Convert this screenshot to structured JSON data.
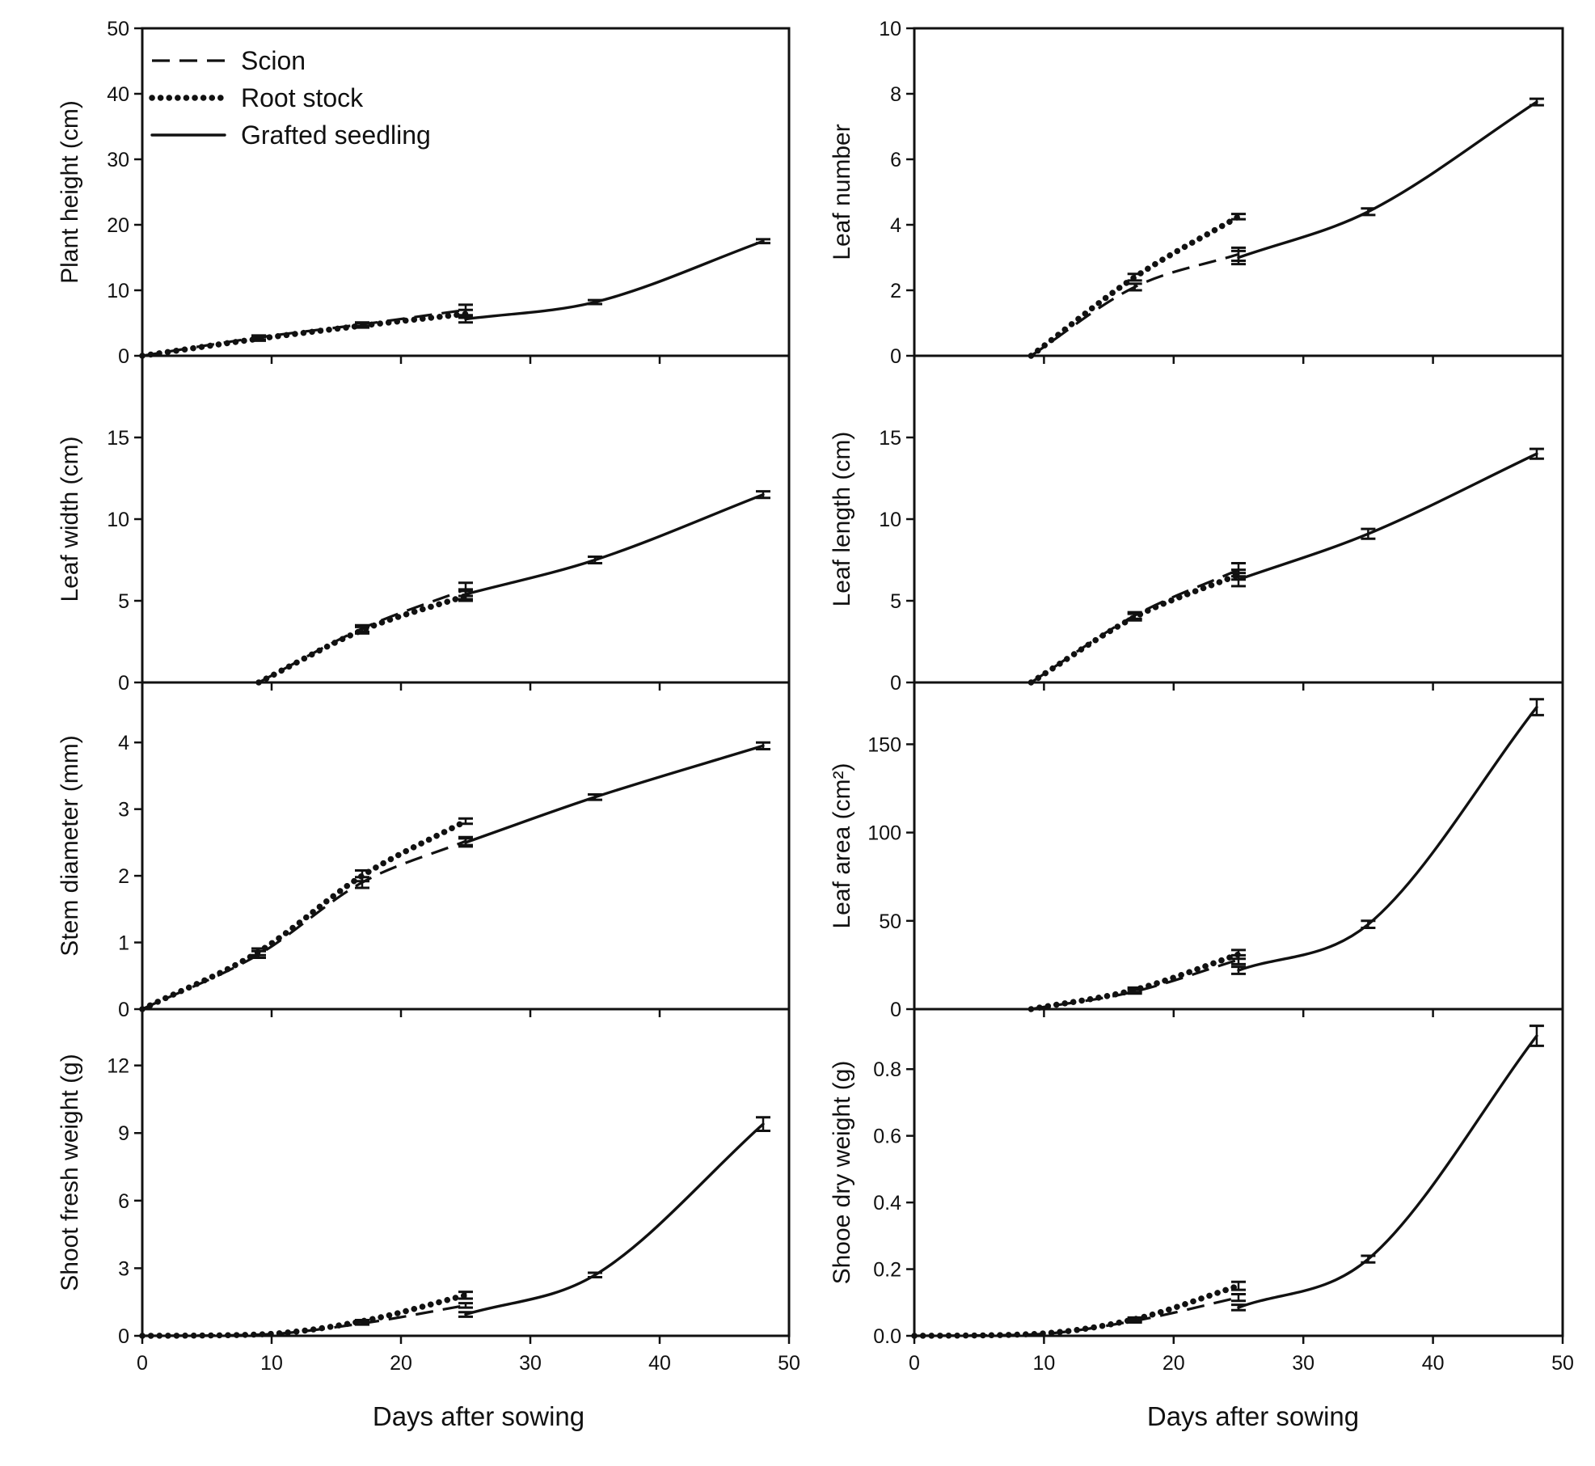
{
  "figure": {
    "xlabel": "Days after sowing",
    "legend": [
      {
        "series": "Scion",
        "style": "dashed"
      },
      {
        "series": "Root stock",
        "style": "dotted"
      },
      {
        "series": "Grafted seedling",
        "style": "solid"
      }
    ]
  },
  "chart_data": [
    {
      "type": "line",
      "panel": "top-left",
      "ylabel": "Plant height (cm)",
      "xlim": [
        0,
        50
      ],
      "ylim": [
        0,
        50
      ],
      "xticks": [
        0,
        10,
        20,
        30,
        40,
        50
      ],
      "yticks": [
        0,
        10,
        20,
        30,
        40,
        50
      ],
      "ytick_labels": [
        "0",
        "10",
        "20",
        "30",
        "40",
        "50"
      ],
      "legend_position": "top-left",
      "series": [
        {
          "name": "Scion",
          "style": "dashed",
          "x": [
            0,
            9,
            17,
            25
          ],
          "y": [
            0,
            2.8,
            4.8,
            7.0
          ],
          "err": [
            0,
            0.3,
            0.3,
            0.8
          ]
        },
        {
          "name": "Root stock",
          "style": "dotted",
          "x": [
            0,
            9,
            17,
            25
          ],
          "y": [
            0,
            2.6,
            4.6,
            6.4
          ],
          "err": [
            0,
            0.3,
            0.3,
            0.6
          ]
        },
        {
          "name": "Grafted seedling",
          "style": "solid",
          "x": [
            25,
            35,
            48
          ],
          "y": [
            5.6,
            8.2,
            17.5
          ],
          "err": [
            0.5,
            0.3,
            0.3
          ]
        }
      ]
    },
    {
      "type": "line",
      "panel": "top-right",
      "ylabel": "Leaf number",
      "xlim": [
        0,
        50
      ],
      "ylim": [
        0,
        10
      ],
      "xticks": [
        0,
        10,
        20,
        30,
        40,
        50
      ],
      "yticks": [
        0,
        2,
        4,
        6,
        8,
        10
      ],
      "ytick_labels": [
        "0",
        "2",
        "4",
        "6",
        "8",
        "10"
      ],
      "series": [
        {
          "name": "Scion",
          "style": "dashed",
          "x": [
            9,
            17,
            25
          ],
          "y": [
            0,
            2.1,
            3.1
          ],
          "err": [
            0,
            0.1,
            0.2
          ]
        },
        {
          "name": "Root stock",
          "style": "dotted",
          "x": [
            9,
            17,
            25
          ],
          "y": [
            0,
            2.4,
            4.25
          ],
          "err": [
            0,
            0.1,
            0.08
          ]
        },
        {
          "name": "Grafted seedling",
          "style": "solid",
          "x": [
            25,
            35,
            48
          ],
          "y": [
            3.0,
            4.4,
            7.75
          ],
          "err": [
            0.2,
            0.1,
            0.1
          ]
        }
      ]
    },
    {
      "type": "line",
      "panel": "row2-left",
      "ylabel": "Leaf width (cm)",
      "xlim": [
        0,
        50
      ],
      "ylim": [
        0,
        20
      ],
      "xticks": [
        0,
        10,
        20,
        30,
        40,
        50
      ],
      "yticks": [
        0,
        5,
        10,
        15
      ],
      "ytick_labels": [
        "0",
        "5",
        "10",
        "15"
      ],
      "series": [
        {
          "name": "Scion",
          "style": "dashed",
          "x": [
            9,
            17,
            25
          ],
          "y": [
            0,
            3.3,
            5.7
          ],
          "err": [
            0,
            0.2,
            0.4
          ]
        },
        {
          "name": "Root stock",
          "style": "dotted",
          "x": [
            9,
            17,
            25
          ],
          "y": [
            0,
            3.2,
            5.3
          ],
          "err": [
            0,
            0.2,
            0.3
          ]
        },
        {
          "name": "Grafted seedling",
          "style": "solid",
          "x": [
            25,
            35,
            48
          ],
          "y": [
            5.4,
            7.5,
            11.5
          ],
          "err": [
            0.3,
            0.2,
            0.2
          ]
        }
      ]
    },
    {
      "type": "line",
      "panel": "row2-right",
      "ylabel": "Leaf length (cm)",
      "xlim": [
        0,
        50
      ],
      "ylim": [
        0,
        20
      ],
      "xticks": [
        0,
        10,
        20,
        30,
        40,
        50
      ],
      "yticks": [
        0,
        5,
        10,
        15
      ],
      "ytick_labels": [
        "0",
        "5",
        "10",
        "15"
      ],
      "series": [
        {
          "name": "Scion",
          "style": "dashed",
          "x": [
            9,
            17,
            25
          ],
          "y": [
            0,
            4.1,
            6.9
          ],
          "err": [
            0,
            0.2,
            0.4
          ]
        },
        {
          "name": "Root stock",
          "style": "dotted",
          "x": [
            9,
            17,
            25
          ],
          "y": [
            0,
            4.0,
            6.6
          ],
          "err": [
            0,
            0.2,
            0.3
          ]
        },
        {
          "name": "Grafted seedling",
          "style": "solid",
          "x": [
            25,
            35,
            48
          ],
          "y": [
            6.3,
            9.1,
            14.0
          ],
          "err": [
            0.4,
            0.3,
            0.3
          ]
        }
      ]
    },
    {
      "type": "line",
      "panel": "row3-left",
      "ylabel": "Stem diameter (mm)",
      "xlim": [
        0,
        50
      ],
      "ylim": [
        0,
        4.9
      ],
      "xticks": [
        0,
        10,
        20,
        30,
        40,
        50
      ],
      "yticks": [
        0,
        1,
        2,
        3,
        4
      ],
      "ytick_labels": [
        "0",
        "1",
        "2",
        "3",
        "4"
      ],
      "series": [
        {
          "name": "Scion",
          "style": "dashed",
          "x": [
            0,
            9,
            17,
            25
          ],
          "y": [
            0,
            0.82,
            1.9,
            2.52
          ],
          "err": [
            0,
            0.05,
            0.08,
            0.06
          ]
        },
        {
          "name": "Root stock",
          "style": "dotted",
          "x": [
            0,
            9,
            17,
            25
          ],
          "y": [
            0,
            0.86,
            2.0,
            2.82
          ],
          "err": [
            0,
            0.05,
            0.08,
            0.04
          ]
        },
        {
          "name": "Grafted seedling",
          "style": "solid",
          "x": [
            25,
            35,
            48
          ],
          "y": [
            2.5,
            3.18,
            3.95
          ],
          "err": [
            0.06,
            0.04,
            0.05
          ]
        }
      ]
    },
    {
      "type": "line",
      "panel": "row3-right",
      "ylabel": "Leaf area (cm²)",
      "xlim": [
        0,
        50
      ],
      "ylim": [
        0,
        185
      ],
      "xticks": [
        0,
        10,
        20,
        30,
        40,
        50
      ],
      "yticks": [
        0,
        50,
        100,
        150
      ],
      "ytick_labels": [
        "0",
        "50",
        "100",
        "150"
      ],
      "series": [
        {
          "name": "Scion",
          "style": "dashed",
          "x": [
            9,
            17,
            25
          ],
          "y": [
            0,
            10,
            28
          ],
          "err": [
            0,
            1.2,
            2.5
          ]
        },
        {
          "name": "Root stock",
          "style": "dotted",
          "x": [
            9,
            17,
            25
          ],
          "y": [
            0,
            11,
            31
          ],
          "err": [
            0,
            1.2,
            2.5
          ]
        },
        {
          "name": "Grafted seedling",
          "style": "solid",
          "x": [
            25,
            35,
            48
          ],
          "y": [
            22,
            48,
            171
          ],
          "err": [
            2,
            2,
            4.5
          ]
        }
      ]
    },
    {
      "type": "line",
      "panel": "bottom-left",
      "ylabel": "Shoot fresh weight (g)",
      "xlim": [
        0,
        50
      ],
      "ylim": [
        0,
        14.5
      ],
      "xticks": [
        0,
        10,
        20,
        30,
        40,
        50
      ],
      "xtick_labels": [
        "0",
        "10",
        "20",
        "30",
        "40",
        "50"
      ],
      "yticks": [
        0,
        3,
        6,
        9,
        12
      ],
      "ytick_labels": [
        "0",
        "3",
        "6",
        "9",
        "12"
      ],
      "series": [
        {
          "name": "Scion",
          "style": "dashed",
          "x": [
            0,
            9,
            17,
            25
          ],
          "y": [
            0,
            0.05,
            0.55,
            1.35
          ],
          "err": [
            0,
            0,
            0.05,
            0.1
          ]
        },
        {
          "name": "Root stock",
          "style": "dotted",
          "x": [
            0,
            9,
            17,
            25
          ],
          "y": [
            0,
            0.06,
            0.65,
            1.8
          ],
          "err": [
            0,
            0,
            0.05,
            0.15
          ]
        },
        {
          "name": "Grafted seedling",
          "style": "solid",
          "x": [
            25,
            35,
            48
          ],
          "y": [
            0.95,
            2.7,
            9.4
          ],
          "err": [
            0.1,
            0.1,
            0.3
          ]
        }
      ]
    },
    {
      "type": "line",
      "panel": "bottom-right",
      "ylabel": "Shooe dry weight (g)",
      "xlim": [
        0,
        50
      ],
      "ylim": [
        0,
        0.98
      ],
      "xticks": [
        0,
        10,
        20,
        30,
        40,
        50
      ],
      "xtick_labels": [
        "0",
        "10",
        "20",
        "30",
        "40",
        "50"
      ],
      "yticks": [
        0,
        0.2,
        0.4,
        0.6,
        0.8
      ],
      "ytick_labels": [
        "0.0",
        "0.2",
        "0.4",
        "0.6",
        "0.8"
      ],
      "series": [
        {
          "name": "Scion",
          "style": "dashed",
          "x": [
            0,
            9,
            17,
            25
          ],
          "y": [
            0,
            0.004,
            0.045,
            0.115
          ],
          "err": [
            0,
            0,
            0.005,
            0.01
          ]
        },
        {
          "name": "Root stock",
          "style": "dotted",
          "x": [
            0,
            9,
            17,
            25
          ],
          "y": [
            0,
            0.005,
            0.05,
            0.15
          ],
          "err": [
            0,
            0,
            0.005,
            0.012
          ]
        },
        {
          "name": "Grafted seedling",
          "style": "solid",
          "x": [
            25,
            35,
            48
          ],
          "y": [
            0.085,
            0.23,
            0.9
          ],
          "err": [
            0.008,
            0.01,
            0.03
          ]
        }
      ]
    }
  ]
}
